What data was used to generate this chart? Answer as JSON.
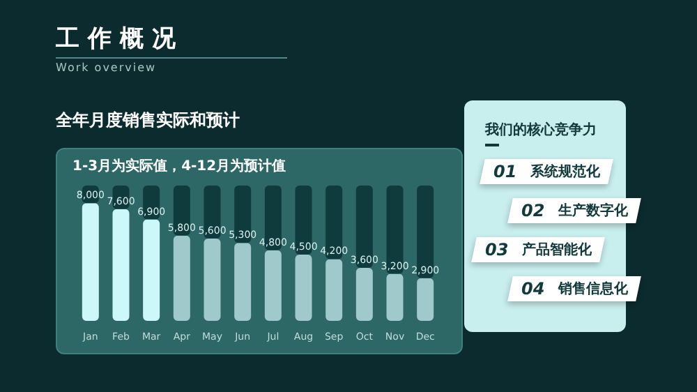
{
  "chart_data": {
    "type": "bar",
    "title": "工作概况",
    "subtitle": "Work overview",
    "annotations": [
      "全年月度销售实际和预计",
      "1-3月为实际值，4-12月为预计值",
      "我们的核心竞争力",
      "01",
      "系统规范化",
      "02",
      "生产数字化",
      "03",
      "产品智能化",
      "04",
      "销售信息化"
    ],
    "categories": [
      "Jan",
      "Feb",
      "Mar",
      "Apr",
      "May",
      "Jun",
      "Jul",
      "Aug",
      "Sep",
      "Oct",
      "Nov",
      "Dec"
    ],
    "series": [
      {
        "values": [
          8000,
          7600,
          6900,
          5800,
          5600,
          5300,
          4800,
          4500,
          4200,
          3600,
          3200,
          2900
        ],
        "colors": [
          "#cdf8fa",
          "#cdf8fa",
          "#cdf8fa",
          "#a0c9cb",
          "#a0c9cb",
          "#a0c9cb",
          "#a0c9cb",
          "#a0c9cb",
          "#a0c9cb",
          "#a0c9cb",
          "#a0c9cb",
          "#a0c9cb"
        ],
        "value_labels": [
          "8,000",
          "7,600",
          "6,900",
          "5,800",
          "5,600",
          "5,300",
          "4,800",
          "4,500",
          "4,200",
          "3,600",
          "3,200",
          "2,900"
        ]
      },
      {
        "color": "#0f3b3d",
        "values": [
          1200,
          1600,
          2300,
          3400,
          3600,
          3900,
          4400,
          4700,
          5000,
          5600,
          6000,
          6300
        ]
      }
    ],
    "stacked": true
  }
}
